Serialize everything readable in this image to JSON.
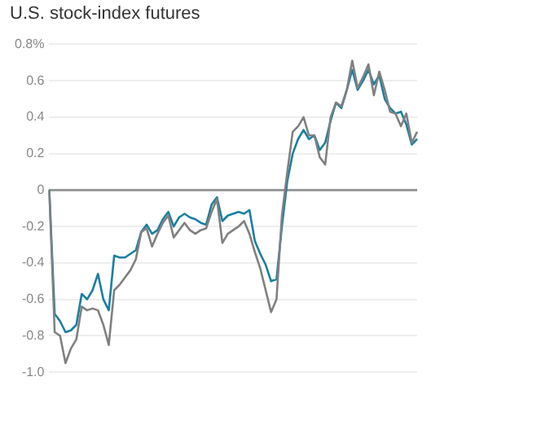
{
  "chart_data": {
    "type": "line",
    "title": "U.S. stock-index futures",
    "categories": [
      null,
      null,
      null,
      null,
      null,
      null,
      null,
      null,
      null,
      null,
      null,
      null,
      null,
      null,
      null,
      null,
      null,
      null,
      null,
      null,
      null,
      null,
      null,
      null,
      null,
      null,
      null,
      null,
      null,
      null,
      null,
      null,
      null,
      null,
      null,
      null,
      null,
      null,
      null,
      null,
      null,
      null,
      null,
      null,
      null,
      null,
      null,
      null,
      null,
      null,
      null,
      null,
      null,
      null,
      null,
      null,
      null,
      null,
      null,
      null,
      null,
      null,
      null,
      null,
      null,
      null,
      null,
      null,
      null
    ],
    "series": [
      {
        "color": "#808080",
        "values": [
          0,
          -0.78,
          -0.8,
          -0.95,
          -0.87,
          -0.82,
          -0.64,
          -0.66,
          -0.65,
          -0.66,
          -0.74,
          -0.85,
          -0.55,
          -0.52,
          -0.48,
          -0.44,
          -0.38,
          -0.23,
          -0.21,
          -0.31,
          -0.24,
          -0.18,
          -0.14,
          -0.26,
          -0.22,
          -0.18,
          -0.22,
          -0.24,
          -0.22,
          -0.21,
          -0.12,
          -0.05,
          -0.29,
          -0.24,
          -0.22,
          -0.2,
          -0.17,
          -0.24,
          -0.34,
          -0.43,
          -0.55,
          -0.67,
          -0.6,
          -0.14,
          0.1,
          0.32,
          0.35,
          0.4,
          0.3,
          0.3,
          0.18,
          0.14,
          0.4,
          0.48,
          0.46,
          0.55,
          0.71,
          0.56,
          0.62,
          0.69,
          0.52,
          0.65,
          0.55,
          0.43,
          0.42,
          0.35,
          0.42,
          0.26,
          0.32
        ]
      },
      {
        "color": "#1a7fa0",
        "values": [
          0,
          -0.68,
          -0.72,
          -0.78,
          -0.77,
          -0.74,
          -0.57,
          -0.6,
          -0.55,
          -0.46,
          -0.6,
          -0.66,
          -0.36,
          -0.37,
          -0.37,
          -0.35,
          -0.33,
          -0.23,
          -0.19,
          -0.24,
          -0.22,
          -0.16,
          -0.12,
          -0.2,
          -0.15,
          -0.13,
          -0.15,
          -0.16,
          -0.18,
          -0.19,
          -0.08,
          -0.04,
          -0.17,
          -0.14,
          -0.13,
          -0.12,
          -0.13,
          -0.11,
          -0.28,
          -0.35,
          -0.41,
          -0.5,
          -0.49,
          -0.2,
          0.05,
          0.2,
          0.28,
          0.33,
          0.28,
          0.3,
          0.22,
          0.26,
          0.38,
          0.48,
          0.45,
          0.55,
          0.66,
          0.55,
          0.6,
          0.66,
          0.58,
          0.63,
          0.5,
          0.45,
          0.42,
          0.43,
          0.36,
          0.25,
          0.28
        ]
      }
    ],
    "ylim": [
      -1.0,
      0.8
    ],
    "yticks": [
      {
        "value": 0.8,
        "label": "0.8%"
      },
      0.6,
      0.4,
      0.2,
      0,
      -0.2,
      -0.4,
      -0.6,
      -0.8,
      {
        "value": -1,
        "label": "-1.0"
      }
    ],
    "grid": "y",
    "legend": false,
    "marker": "none",
    "line_style": "solid"
  }
}
